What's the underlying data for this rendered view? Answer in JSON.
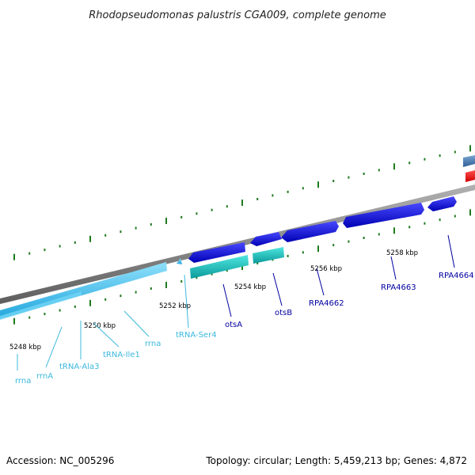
{
  "title": "Rhodopseudomonas palustris CGA009, complete genome",
  "footer": {
    "accession": "Accession: NC_005296",
    "summary": "Topology: circular; Length: 5,459,213 bp; Genes: 4,872"
  },
  "colors": {
    "backbone": "#8c8c8c",
    "tick": "#1f7a1f",
    "rna_feature": "#4fc8ee",
    "rna_label": "#3bb8dd",
    "cds_feature": "#1a1adc",
    "cds_label": "#0000a0",
    "teal_feature": "#22c8c8",
    "red_feature": "#ff1a1a",
    "steel_feature": "#4a7fb8"
  },
  "scale_labels": [
    "5248 kbp",
    "5250 kbp",
    "5252 kbp",
    "5254 kbp",
    "5256 kbp",
    "5258 kbp"
  ],
  "gene_labels": [
    {
      "text": "rrna",
      "type": "rna"
    },
    {
      "text": "rrnA",
      "type": "rna"
    },
    {
      "text": "tRNA-Ala3",
      "type": "rna"
    },
    {
      "text": "tRNA-Ile1",
      "type": "rna"
    },
    {
      "text": "rrna",
      "type": "rna"
    },
    {
      "text": "tRNA-Ser4",
      "type": "rna"
    },
    {
      "text": "otsA",
      "type": "cds"
    },
    {
      "text": "otsB",
      "type": "cds"
    },
    {
      "text": "RPA4662",
      "type": "cds"
    },
    {
      "text": "RPA4663",
      "type": "cds"
    },
    {
      "text": "RPA4664",
      "type": "cds"
    }
  ]
}
